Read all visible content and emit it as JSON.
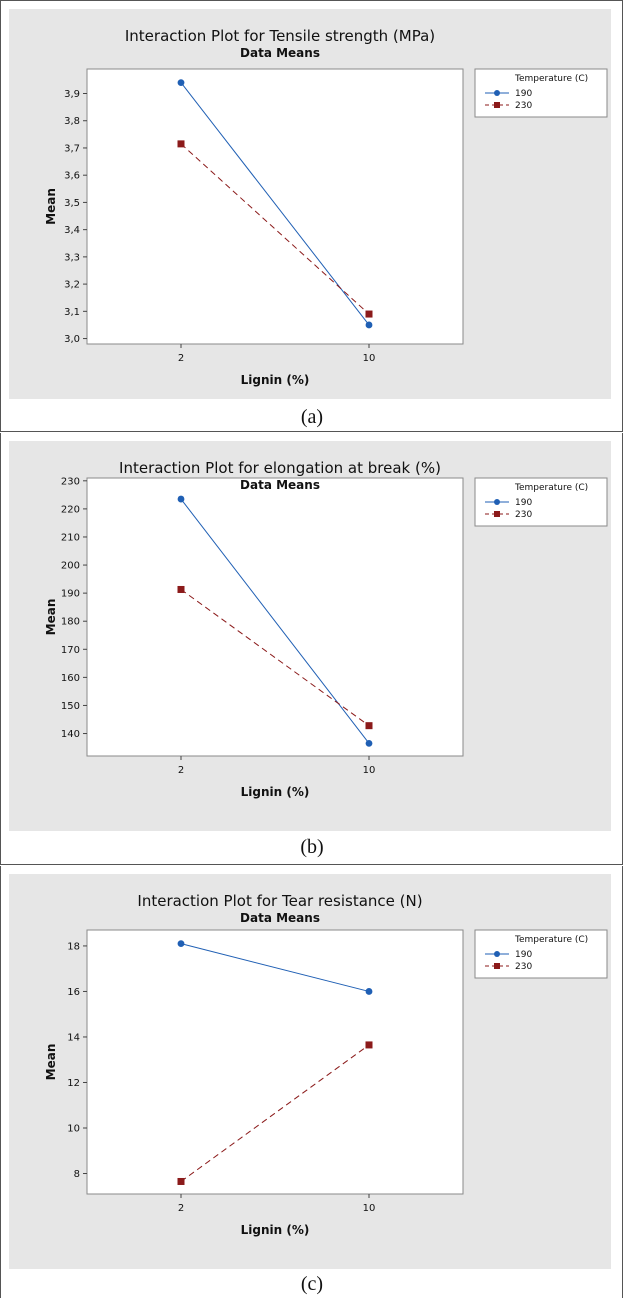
{
  "chart_data": [
    {
      "type": "line",
      "caption": "(a)",
      "title": "Interaction Plot for Tensile strength (MPa)",
      "subtitle": "Data Means",
      "xlabel": "Lignin (%)",
      "ylabel": "Mean",
      "categories": [
        "2",
        "10"
      ],
      "ylim": [
        2.98,
        3.99
      ],
      "yticks": [
        "3,0",
        "3,1",
        "3,2",
        "3,3",
        "3,4",
        "3,5",
        "3,6",
        "3,7",
        "3,8",
        "3,9"
      ],
      "ytick_values": [
        3.0,
        3.1,
        3.2,
        3.3,
        3.4,
        3.5,
        3.6,
        3.7,
        3.8,
        3.9
      ],
      "legend": {
        "title": "Temperature (C)",
        "placement": "right"
      },
      "series": [
        {
          "name": "190",
          "color": "#1f5fb4",
          "marker": "circle",
          "dash": "solid",
          "values": [
            3.94,
            3.05
          ]
        },
        {
          "name": "230",
          "color": "#8b1a1a",
          "marker": "square",
          "dash": "dashed",
          "values": [
            3.715,
            3.09
          ]
        }
      ]
    },
    {
      "type": "line",
      "caption": "(b)",
      "title": "Interaction Plot for elongation at break (%)",
      "subtitle": "Data Means",
      "xlabel": "Lignin (%)",
      "ylabel": "Mean",
      "categories": [
        "2",
        "10"
      ],
      "ylim": [
        132,
        231
      ],
      "yticks": [
        "140",
        "150",
        "160",
        "170",
        "180",
        "190",
        "200",
        "210",
        "220",
        "230"
      ],
      "ytick_values": [
        140,
        150,
        160,
        170,
        180,
        190,
        200,
        210,
        220,
        230
      ],
      "legend": {
        "title": "Temperature (C)",
        "placement": "right"
      },
      "series": [
        {
          "name": "190",
          "color": "#1f5fb4",
          "marker": "circle",
          "dash": "solid",
          "values": [
            223.5,
            136.5
          ]
        },
        {
          "name": "230",
          "color": "#8b1a1a",
          "marker": "square",
          "dash": "dashed",
          "values": [
            191.3,
            142.8
          ]
        }
      ]
    },
    {
      "type": "line",
      "caption": "(c)",
      "title": "Interaction Plot for Tear resistance (N)",
      "subtitle": "Data Means",
      "xlabel": "Lignin (%)",
      "ylabel": "Mean",
      "categories": [
        "2",
        "10"
      ],
      "ylim": [
        7.1,
        18.7
      ],
      "yticks": [
        "8",
        "10",
        "12",
        "14",
        "16",
        "18"
      ],
      "ytick_values": [
        8,
        10,
        12,
        14,
        16,
        18
      ],
      "legend": {
        "title": "Temperature (C)",
        "placement": "right"
      },
      "series": [
        {
          "name": "190",
          "color": "#1f5fb4",
          "marker": "circle",
          "dash": "solid",
          "values": [
            18.1,
            16.0
          ]
        },
        {
          "name": "230",
          "color": "#8b1a1a",
          "marker": "square",
          "dash": "dashed",
          "values": [
            7.65,
            13.65
          ]
        }
      ]
    }
  ]
}
